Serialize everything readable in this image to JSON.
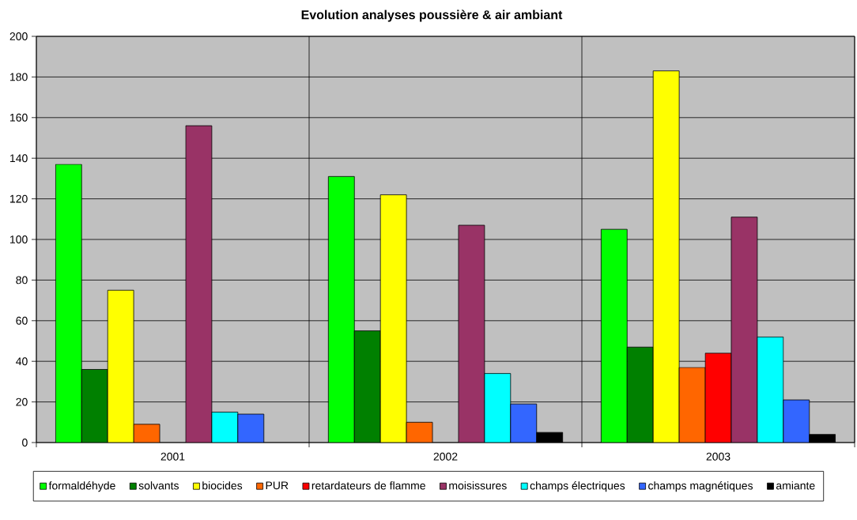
{
  "chart_data": {
    "type": "bar",
    "title": "Evolution analyses poussière & air ambiant",
    "categories": [
      "2001",
      "2002",
      "2003"
    ],
    "series": [
      {
        "name": "formaldéhyde",
        "color": "#00ff00",
        "values": [
          137,
          131,
          105
        ]
      },
      {
        "name": "solvants",
        "color": "#008000",
        "values": [
          36,
          55,
          47
        ]
      },
      {
        "name": "biocides",
        "color": "#ffff00",
        "values": [
          75,
          122,
          183
        ]
      },
      {
        "name": "PUR",
        "color": "#ff6600",
        "values": [
          9,
          10,
          37
        ]
      },
      {
        "name": "retardateurs de flamme",
        "color": "#ff0000",
        "values": [
          null,
          null,
          44
        ]
      },
      {
        "name": "moisissures",
        "color": "#993366",
        "values": [
          156,
          107,
          111
        ]
      },
      {
        "name": "champs électriques",
        "color": "#00ffff",
        "values": [
          15,
          34,
          52
        ]
      },
      {
        "name": "champs magnétiques",
        "color": "#3366ff",
        "values": [
          14,
          19,
          21
        ]
      },
      {
        "name": "amiante",
        "color": "#000000",
        "values": [
          null,
          5,
          4
        ]
      }
    ],
    "ylim": [
      0,
      200
    ],
    "yticks": [
      0,
      20,
      40,
      60,
      80,
      100,
      120,
      140,
      160,
      180,
      200
    ],
    "grid": true,
    "legend": "bottom"
  }
}
